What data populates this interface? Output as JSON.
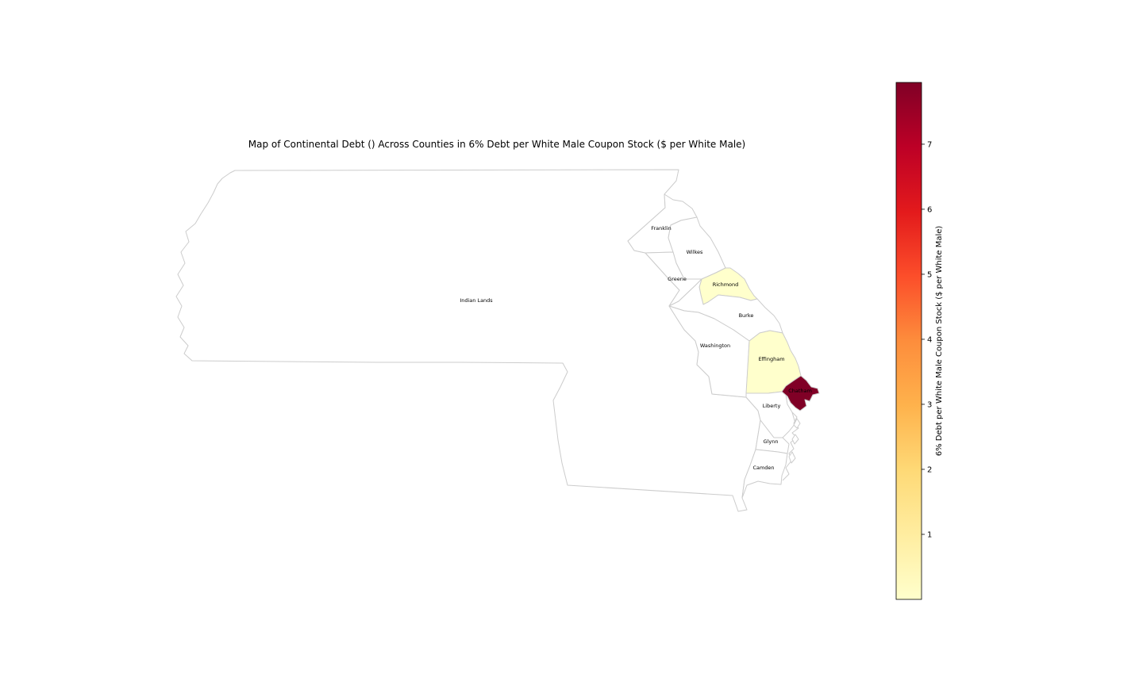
{
  "map": {
    "title": "Map of Continental Debt () Across Counties in 6% Debt per White Male Coupon Stock ($ per White Male)",
    "colorbar": {
      "label": "6% Debt per White Male Coupon Stock ($ per White Male)",
      "colormap": "YlOrRd",
      "min": 0,
      "max": 7.95,
      "ticks": [
        "1",
        "2",
        "3",
        "4",
        "5",
        "6",
        "7"
      ],
      "tick_values": [
        1,
        2,
        3,
        4,
        5,
        6,
        7
      ],
      "gradient_colors": [
        "#ffffcc",
        "#ffeda0",
        "#fed976",
        "#feb24c",
        "#fd8d3c",
        "#fc4e2a",
        "#e31a1c",
        "#bd0026",
        "#800026"
      ]
    },
    "colors": {
      "border": "#cccccc",
      "no_data_fill": "#ffffff",
      "richmond": "#ffffcc",
      "effingham": "#ffffcc",
      "chatham": "#800026"
    },
    "counties": [
      {
        "key": "indian_lands",
        "name": "Indian Lands"
      },
      {
        "key": "franklin",
        "name": "Franklin"
      },
      {
        "key": "wilkes",
        "name": "Wilkes"
      },
      {
        "key": "greene",
        "name": "Greene"
      },
      {
        "key": "richmond",
        "name": "Richmond"
      },
      {
        "key": "burke",
        "name": "Burke"
      },
      {
        "key": "washington",
        "name": "Washington"
      },
      {
        "key": "effingham",
        "name": "Effingham"
      },
      {
        "key": "chatham",
        "name": "Chatham"
      },
      {
        "key": "liberty",
        "name": "Liberty"
      },
      {
        "key": "glynn",
        "name": "Glynn"
      },
      {
        "key": "camden",
        "name": "Camden"
      }
    ]
  }
}
